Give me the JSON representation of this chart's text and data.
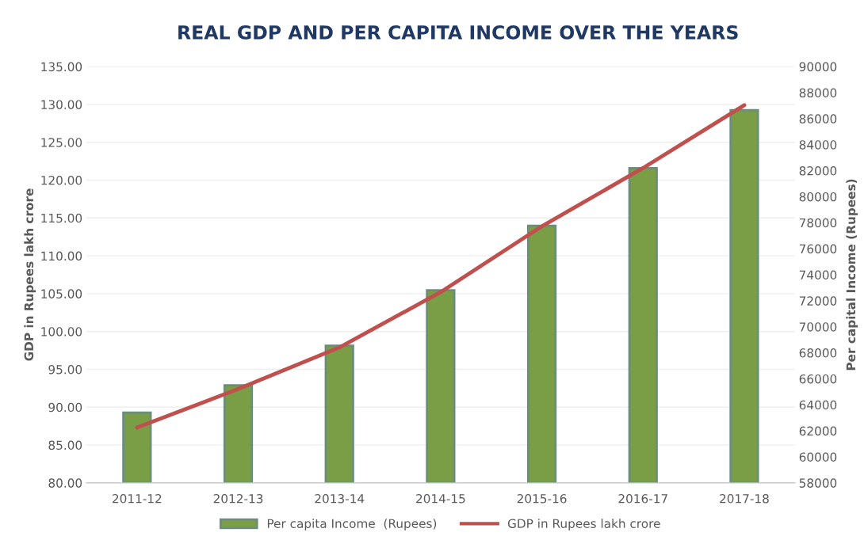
{
  "chart_data": {
    "type": "bar",
    "title": "REAL GDP AND PER CAPITA INCOME OVER THE YEARS",
    "ylabel": "GDP in Rupees lakh crore",
    "y2label": "Per capital Income (Rupees)",
    "categories": [
      "2011-12",
      "2012-13",
      "2013-14",
      "2014-15",
      "2015-16",
      "2016-17",
      "2017-18"
    ],
    "series": [
      {
        "name": "Per capita Income  (Rupees)",
        "axis": "y2",
        "color": "#7a9e45",
        "values": [
          63400,
          65500,
          68550,
          72800,
          77760,
          82200,
          86650
        ]
      },
      {
        "name": "GDP in Rupees lakh crore",
        "type": "line",
        "axis": "y",
        "color": "#c0504d",
        "values": [
          87.3,
          92.4,
          97.9,
          105.2,
          113.9,
          121.6,
          129.9
        ]
      }
    ],
    "ylim": [
      80,
      135
    ],
    "yticks": [
      {
        "value": 80,
        "label": "80.00"
      },
      {
        "value": 85,
        "label": "85.00"
      },
      {
        "value": 90,
        "label": "90.00"
      },
      {
        "value": 95,
        "label": "95.00"
      },
      {
        "value": 100,
        "label": "100.00"
      },
      {
        "value": 105,
        "label": "105.00"
      },
      {
        "value": 110,
        "label": "110.00"
      },
      {
        "value": 115,
        "label": "115.00"
      },
      {
        "value": 120,
        "label": "120.00"
      },
      {
        "value": 125,
        "label": "125.00"
      },
      {
        "value": 130,
        "label": "130.00"
      },
      {
        "value": 135,
        "label": "135.00"
      }
    ],
    "y2lim": [
      58000,
      90000
    ],
    "y2ticks": [
      58000,
      60000,
      62000,
      64000,
      66000,
      68000,
      70000,
      72000,
      74000,
      76000,
      78000,
      80000,
      82000,
      84000,
      86000,
      88000,
      90000
    ],
    "grid": "y",
    "legend": "bottom"
  }
}
